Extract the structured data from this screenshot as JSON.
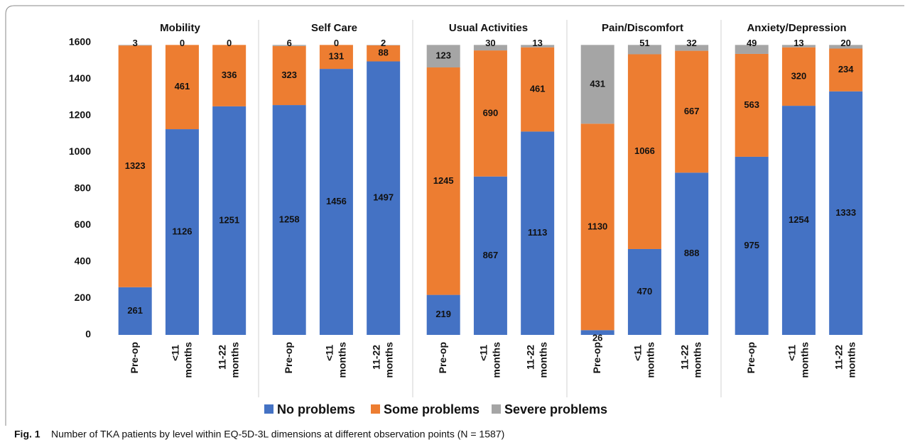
{
  "chart_data": [
    {
      "type": "stacked_bar",
      "title": "Mobility",
      "categories": [
        "Pre-op",
        "<11 months",
        "11-22 months"
      ],
      "series": [
        {
          "name": "No problems",
          "color": "#4472c4",
          "values": [
            261,
            1126,
            1251
          ]
        },
        {
          "name": "Some problems",
          "color": "#ed7d31",
          "values": [
            1323,
            461,
            336
          ]
        },
        {
          "name": "Severe problems",
          "color": "#a5a5a5",
          "values": [
            3,
            0,
            0
          ]
        }
      ],
      "ylim": [
        0,
        1600
      ],
      "yticks": [
        0,
        200,
        400,
        600,
        800,
        1000,
        1200,
        1400,
        1600
      ]
    },
    {
      "type": "stacked_bar",
      "title": "Self Care",
      "categories": [
        "Pre-op",
        "<11 months",
        "11-22 months"
      ],
      "series": [
        {
          "name": "No problems",
          "color": "#4472c4",
          "values": [
            1258,
            1456,
            1497
          ]
        },
        {
          "name": "Some problems",
          "color": "#ed7d31",
          "values": [
            323,
            131,
            88
          ]
        },
        {
          "name": "Severe problems",
          "color": "#a5a5a5",
          "values": [
            6,
            0,
            2
          ]
        }
      ],
      "ylim": [
        0,
        1600
      ]
    },
    {
      "type": "stacked_bar",
      "title": "Usual Activities",
      "categories": [
        "Pre-op",
        "<11 months",
        "11-22 months"
      ],
      "series": [
        {
          "name": "No problems",
          "color": "#4472c4",
          "values": [
            219,
            867,
            1113
          ]
        },
        {
          "name": "Some problems",
          "color": "#ed7d31",
          "values": [
            1245,
            690,
            461
          ]
        },
        {
          "name": "Severe problems",
          "color": "#a5a5a5",
          "values": [
            123,
            30,
            13
          ]
        }
      ],
      "ylim": [
        0,
        1600
      ]
    },
    {
      "type": "stacked_bar",
      "title": "Pain/Discomfort",
      "categories": [
        "Pre-op",
        "<11 months",
        "11-22 months"
      ],
      "series": [
        {
          "name": "No problems",
          "color": "#4472c4",
          "values": [
            26,
            470,
            888
          ]
        },
        {
          "name": "Some problems",
          "color": "#ed7d31",
          "values": [
            1130,
            1066,
            667
          ]
        },
        {
          "name": "Severe problems",
          "color": "#a5a5a5",
          "values": [
            431,
            51,
            32
          ]
        }
      ],
      "ylim": [
        0,
        1600
      ]
    },
    {
      "type": "stacked_bar",
      "title": "Anxiety/Depression",
      "categories": [
        "Pre-op",
        "<11 months",
        "11-22 months"
      ],
      "series": [
        {
          "name": "No problems",
          "color": "#4472c4",
          "values": [
            975,
            1254,
            1333
          ]
        },
        {
          "name": "Some problems",
          "color": "#ed7d31",
          "values": [
            563,
            320,
            234
          ]
        },
        {
          "name": "Severe problems",
          "color": "#a5a5a5",
          "values": [
            49,
            13,
            20
          ]
        }
      ],
      "ylim": [
        0,
        1600
      ]
    }
  ],
  "caption": {
    "label": "Fig. 1",
    "text": "Number of TKA patients by level within EQ-5D-3L dimensions at different observation points (N = 1587)"
  }
}
